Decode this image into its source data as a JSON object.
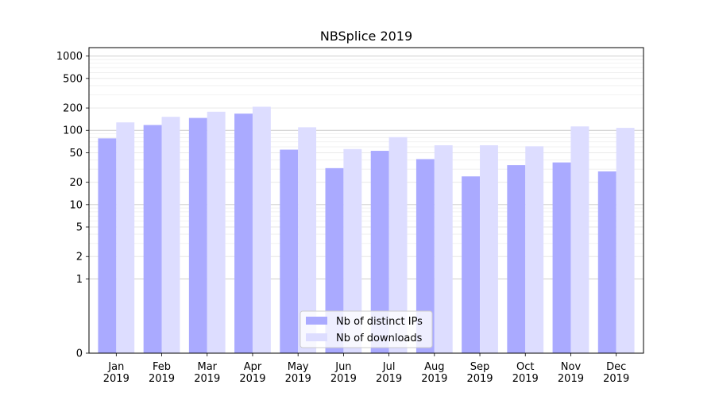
{
  "chart_data": {
    "type": "bar",
    "title": "NBSplice 2019",
    "xlabel": "",
    "ylabel": "",
    "yscale": "symlog",
    "yticks": [
      0,
      1,
      2,
      5,
      10,
      20,
      50,
      100,
      200,
      500,
      1000
    ],
    "ytick_labels": [
      "0",
      "1",
      "2",
      "5",
      "10",
      "20",
      "50",
      "100",
      "200",
      "500",
      "1000"
    ],
    "ylim": [
      0,
      1300
    ],
    "grid": true,
    "legend_position": "lower center",
    "categories": [
      "Jan\n2019",
      "Feb\n2019",
      "Mar\n2019",
      "Apr\n2019",
      "May\n2019",
      "Jun\n2019",
      "Jul\n2019",
      "Aug\n2019",
      "Sep\n2019",
      "Oct\n2019",
      "Nov\n2019",
      "Dec\n2019"
    ],
    "series": [
      {
        "name": "Nb of distinct IPs",
        "color": "#aaaaff",
        "values": [
          78,
          118,
          147,
          168,
          55,
          31,
          53,
          41,
          24,
          34,
          37,
          28
        ]
      },
      {
        "name": "Nb of downloads",
        "color": "#ddddff",
        "values": [
          128,
          152,
          178,
          208,
          110,
          56,
          81,
          63,
          63,
          61,
          113,
          108
        ]
      }
    ]
  }
}
